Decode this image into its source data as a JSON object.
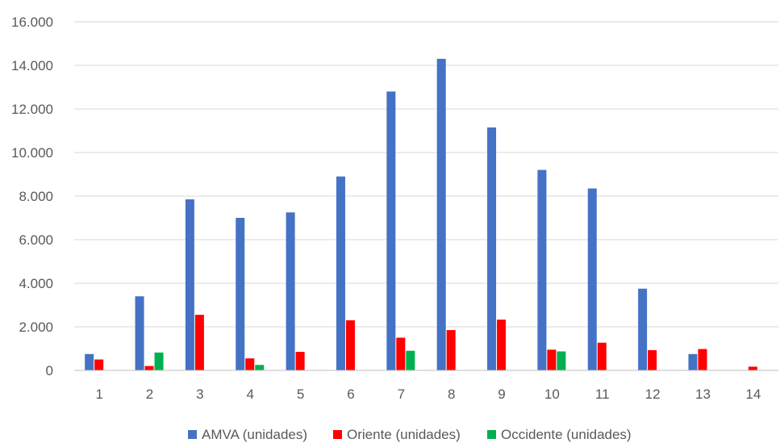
{
  "chart_data": {
    "type": "bar",
    "categories": [
      "1",
      "2",
      "3",
      "4",
      "5",
      "6",
      "7",
      "8",
      "9",
      "10",
      "11",
      "12",
      "13",
      "14"
    ],
    "series": [
      {
        "name": "AMVA (unidades)",
        "color": "#4472C4",
        "values": [
          750,
          3400,
          7850,
          7000,
          7250,
          8900,
          12800,
          14300,
          11150,
          9200,
          8350,
          3750,
          750,
          0
        ]
      },
      {
        "name": "Oriente (unidades)",
        "color": "#FF0000",
        "values": [
          500,
          200,
          2550,
          550,
          850,
          2300,
          1500,
          1850,
          2330,
          950,
          1270,
          930,
          980,
          170
        ]
      },
      {
        "name": "Occidente (unidades)",
        "color": "#00B050",
        "values": [
          0,
          820,
          0,
          250,
          0,
          0,
          900,
          0,
          0,
          870,
          0,
          0,
          0,
          0
        ]
      }
    ],
    "ylim": [
      0,
      16000
    ],
    "yticks": [
      0,
      2000,
      4000,
      6000,
      8000,
      10000,
      12000,
      14000,
      16000
    ],
    "ytick_labels": [
      "0",
      "2.000",
      "4.000",
      "6.000",
      "8.000",
      "10.000",
      "12.000",
      "14.000",
      "16.000"
    ],
    "title": "",
    "xlabel": "",
    "ylabel": "",
    "grid": true,
    "legend_position": "bottom"
  }
}
